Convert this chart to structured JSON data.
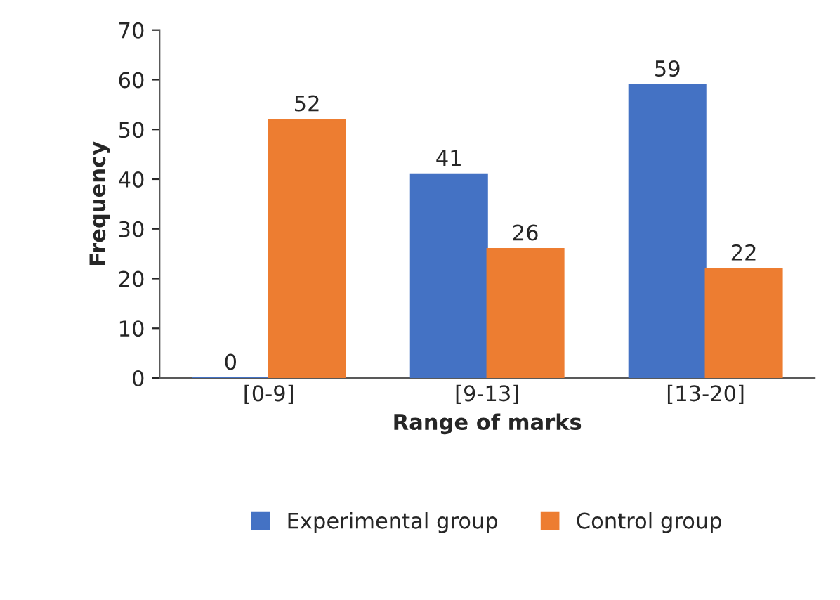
{
  "chart_data": {
    "type": "bar",
    "xlabel": "Range of marks",
    "ylabel": "Frequency",
    "categories": [
      "[0-9]",
      "[9-13]",
      "[13-20]"
    ],
    "series": [
      {
        "name": "Experimental group",
        "color": "#4472c4",
        "values": [
          0,
          41,
          59
        ]
      },
      {
        "name": "Control group",
        "color": "#ed7d31",
        "values": [
          52,
          26,
          22
        ]
      }
    ],
    "ylim": [
      0,
      70
    ],
    "yticks": [
      0,
      10,
      20,
      30,
      40,
      50,
      60,
      70
    ],
    "data_labels": true,
    "grid": false,
    "legend": "bottom"
  }
}
